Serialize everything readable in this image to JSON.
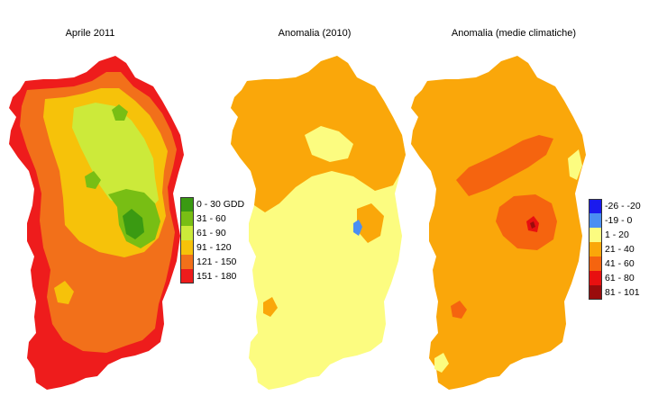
{
  "panels": [
    {
      "title": "Aprile 2011",
      "legend": [
        {
          "label": "0 - 30 GDD",
          "color": "#3a9a12"
        },
        {
          "label": "31 - 60",
          "color": "#78be14"
        },
        {
          "label": "61 - 90",
          "color": "#ccea3a"
        },
        {
          "label": "91 - 120",
          "color": "#f6c20a"
        },
        {
          "label": "121 - 150",
          "color": "#f2701a"
        },
        {
          "label": "151 - 180",
          "color": "#ee1c1c"
        }
      ]
    },
    {
      "title": "Anomalia (2010)"
    },
    {
      "title": "Anomalia (medie climatiche)",
      "legend": [
        {
          "label": "-26 - -20",
          "color": "#1a1aee"
        },
        {
          "label": "-19 - 0",
          "color": "#4a8ef2"
        },
        {
          "label": "1 - 20",
          "color": "#fcfc80"
        },
        {
          "label": "21 - 40",
          "color": "#faa70a"
        },
        {
          "label": "41 - 60",
          "color": "#f5640f"
        },
        {
          "label": "61 - 80",
          "color": "#e81010"
        },
        {
          "label": "81 - 101",
          "color": "#9a0c0c"
        }
      ]
    }
  ]
}
